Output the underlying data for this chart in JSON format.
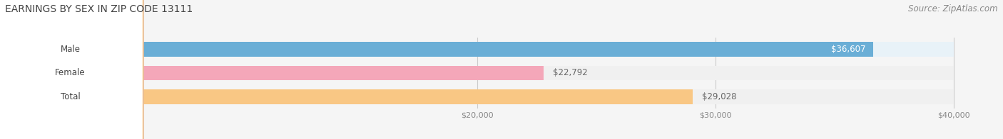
{
  "title": "EARNINGS BY SEX IN ZIP CODE 13111",
  "source": "Source: ZipAtlas.com",
  "categories": [
    "Male",
    "Female",
    "Total"
  ],
  "values": [
    36607,
    22792,
    29028
  ],
  "bar_colors": [
    "#6aaed6",
    "#f4a7b9",
    "#f9c784"
  ],
  "bar_bg_colors": [
    "#e8f2f9",
    "#eaeaea",
    "#eaeaea"
  ],
  "value_labels": [
    "$36,607",
    "$22,792",
    "$29,028"
  ],
  "value_label_colors": [
    "#ffffff",
    "#777777",
    "#777777"
  ],
  "xmin": 0,
  "xmax": 40000,
  "xticks": [
    20000,
    30000,
    40000
  ],
  "xtick_labels": [
    "$20,000",
    "$30,000",
    "$40,000"
  ],
  "title_fontsize": 10,
  "source_fontsize": 8.5,
  "bar_label_fontsize": 8.5,
  "value_fontsize": 8.5,
  "tick_fontsize": 8,
  "background_color": "#f5f5f5",
  "bar_height": 0.62
}
